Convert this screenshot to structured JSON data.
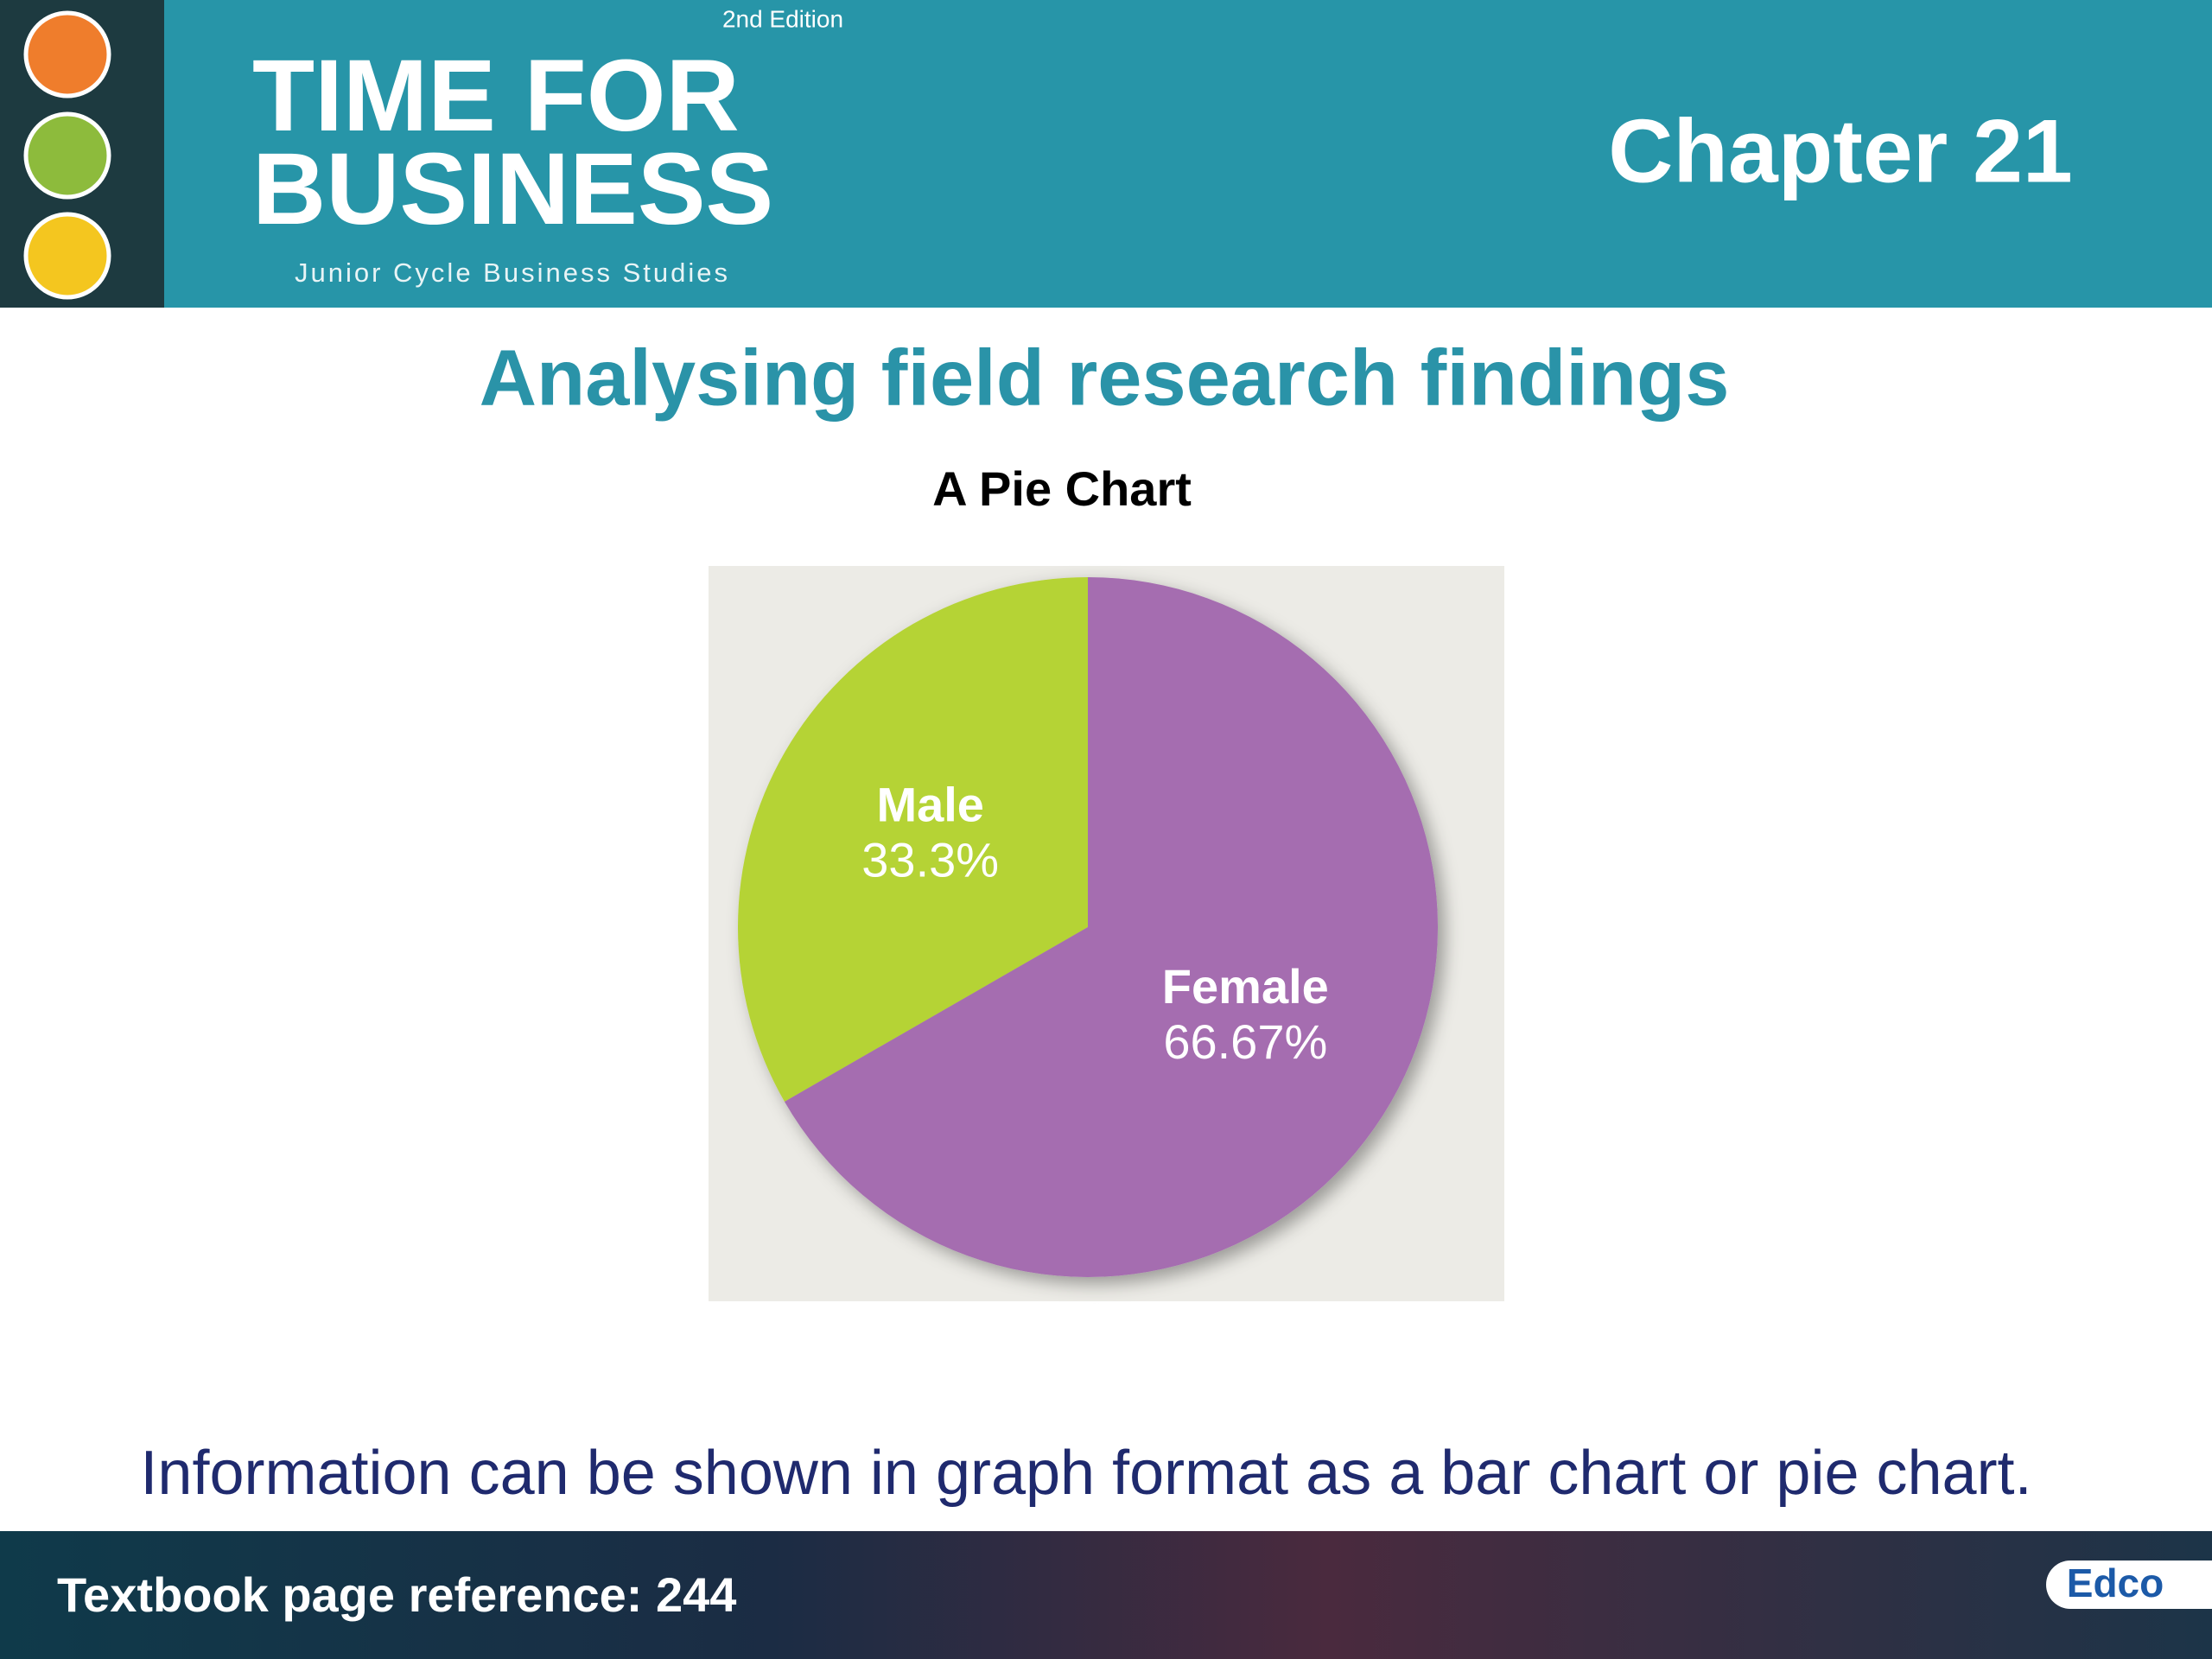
{
  "header": {
    "edition": "2nd Edition",
    "brand_line1": "TIME FOR",
    "brand_line2": "BUSINESS",
    "brand_sub": "Junior Cycle Business Studies",
    "chapter": "Chapter 21"
  },
  "slide_title": "Analysing field research findings",
  "chart_data": {
    "type": "pie",
    "title": "A Pie Chart",
    "categories": [
      "Male",
      "Female"
    ],
    "values": [
      33.3,
      66.67
    ],
    "value_labels": [
      "33.3%",
      "66.67%"
    ],
    "colors": [
      "#b5d334",
      "#a56db0"
    ]
  },
  "caption": "Information can be shown in graph format as a bar chart or pie chart.",
  "footer": {
    "reference": "Textbook page reference: 244",
    "logo": "Edco"
  }
}
